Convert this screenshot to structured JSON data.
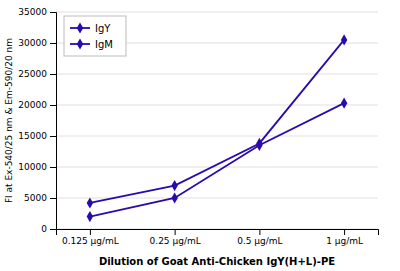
{
  "chart_data": {
    "type": "line",
    "categories": [
      "0.125 μg/mL",
      "0.25 μg/mL",
      "0.5 μg/mL",
      "1 μg/mL"
    ],
    "series": [
      {
        "name": "IgY",
        "color": "#2b0aad",
        "marker": "diamond",
        "values": [
          2000,
          5000,
          13500,
          20300
        ]
      },
      {
        "name": "IgM",
        "color": "#2b0aad",
        "marker": "diamond",
        "values": [
          4200,
          7000,
          13800,
          30500
        ]
      }
    ],
    "xlabel": "Dilution of Goat Anti-Chicken IgY(H+L)-PE",
    "ylabel": "Fl at Ex-540/25 nm & Em-590/20 nm",
    "ylim": [
      0,
      35000
    ],
    "yticks": [
      0,
      5000,
      10000,
      15000,
      20000,
      25000,
      30000,
      35000
    ],
    "grid": true,
    "legend": "upper left"
  }
}
